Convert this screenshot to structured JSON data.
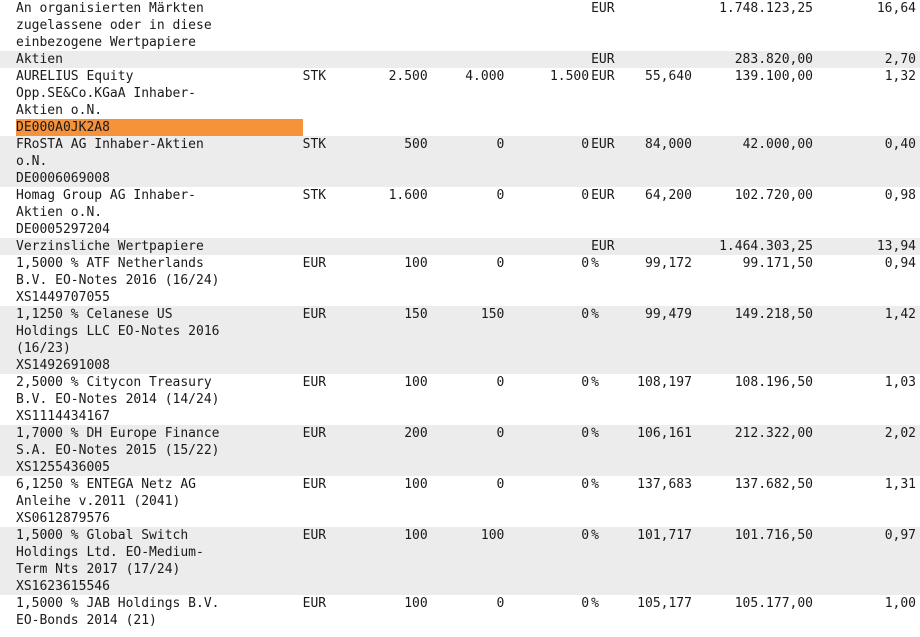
{
  "rows": [
    {
      "name": [
        "An organisierten Märkten",
        "zugelassene oder in diese",
        "einbezogene Wertpapiere"
      ],
      "isin": "",
      "unit": "",
      "q1": "",
      "q2": "",
      "q3": "",
      "cur": "EUR",
      "price": "",
      "value": "1.748.123,25",
      "pct": "16,64",
      "shade": false
    },
    {
      "name": [
        "Aktien"
      ],
      "isin": "",
      "unit": "",
      "q1": "",
      "q2": "",
      "q3": "",
      "cur": "EUR",
      "price": "",
      "value": "283.820,00",
      "pct": "2,70",
      "shade": true
    },
    {
      "name": [
        "AURELIUS Equity",
        "Opp.SE&Co.KGaA Inhaber-",
        "Aktien o.N."
      ],
      "isin": "DE000A0JK2A8",
      "isin_highlight": true,
      "unit": "STK",
      "q1": "2.500",
      "q2": "4.000",
      "q3": "1.500",
      "cur": "EUR",
      "price": "55,640",
      "value": "139.100,00",
      "pct": "1,32",
      "shade": false
    },
    {
      "name": [
        "FRoSTA AG Inhaber-Aktien",
        "o.N."
      ],
      "isin": "DE0006069008",
      "unit": "STK",
      "q1": "500",
      "q2": "0",
      "q3": "0",
      "cur": "EUR",
      "price": "84,000",
      "value": "42.000,00",
      "pct": "0,40",
      "shade": true
    },
    {
      "name": [
        "Homag Group AG Inhaber-",
        "Aktien o.N."
      ],
      "isin": "DE0005297204",
      "unit": "STK",
      "q1": "1.600",
      "q2": "0",
      "q3": "0",
      "cur": "EUR",
      "price": "64,200",
      "value": "102.720,00",
      "pct": "0,98",
      "shade": false
    },
    {
      "name": [
        "Verzinsliche Wertpapiere"
      ],
      "isin": "",
      "unit": "",
      "q1": "",
      "q2": "",
      "q3": "",
      "cur": "EUR",
      "price": "",
      "value": "1.464.303,25",
      "pct": "13,94",
      "shade": true
    },
    {
      "name": [
        "1,5000 % ATF Netherlands",
        "B.V. EO-Notes 2016 (16/24)"
      ],
      "isin": "XS1449707055",
      "unit": "EUR",
      "q1": "100",
      "q2": "0",
      "q3": "0",
      "cur": "%",
      "price": "99,172",
      "value": "99.171,50",
      "pct": "0,94",
      "shade": false
    },
    {
      "name": [
        "1,1250 % Celanese US",
        "Holdings LLC EO-Notes 2016",
        "(16/23)"
      ],
      "isin": "XS1492691008",
      "unit": "EUR",
      "q1": "150",
      "q2": "150",
      "q3": "0",
      "cur": "%",
      "price": "99,479",
      "value": "149.218,50",
      "pct": "1,42",
      "shade": true
    },
    {
      "name": [
        "2,5000 % Citycon Treasury",
        "B.V. EO-Notes 2014 (14/24)"
      ],
      "isin": "XS1114434167",
      "unit": "EUR",
      "q1": "100",
      "q2": "0",
      "q3": "0",
      "cur": "%",
      "price": "108,197",
      "value": "108.196,50",
      "pct": "1,03",
      "shade": false
    },
    {
      "name": [
        "1,7000 % DH Europe Finance",
        "S.A. EO-Notes 2015 (15/22)"
      ],
      "isin": "XS1255436005",
      "unit": "EUR",
      "q1": "200",
      "q2": "0",
      "q3": "0",
      "cur": "%",
      "price": "106,161",
      "value": "212.322,00",
      "pct": "2,02",
      "shade": true
    },
    {
      "name": [
        "6,1250 % ENTEGA Netz AG",
        "Anleihe v.2011 (2041)"
      ],
      "isin": "XS0612879576",
      "unit": "EUR",
      "q1": "100",
      "q2": "0",
      "q3": "0",
      "cur": "%",
      "price": "137,683",
      "value": "137.682,50",
      "pct": "1,31",
      "shade": false
    },
    {
      "name": [
        "1,5000 % Global Switch",
        "Holdings Ltd. EO-Medium-",
        "Term Nts 2017 (17/24)"
      ],
      "isin": "XS1623615546",
      "unit": "EUR",
      "q1": "100",
      "q2": "100",
      "q3": "0",
      "cur": "%",
      "price": "101,717",
      "value": "101.716,50",
      "pct": "0,97",
      "shade": true
    },
    {
      "name": [
        "1,5000 % JAB Holdings B.V.",
        "EO-Bonds 2014 (21)"
      ],
      "isin": "",
      "unit": "EUR",
      "q1": "100",
      "q2": "0",
      "q3": "0",
      "cur": "%",
      "price": "105,177",
      "value": "105.177,00",
      "pct": "1,00",
      "shade": false
    }
  ]
}
